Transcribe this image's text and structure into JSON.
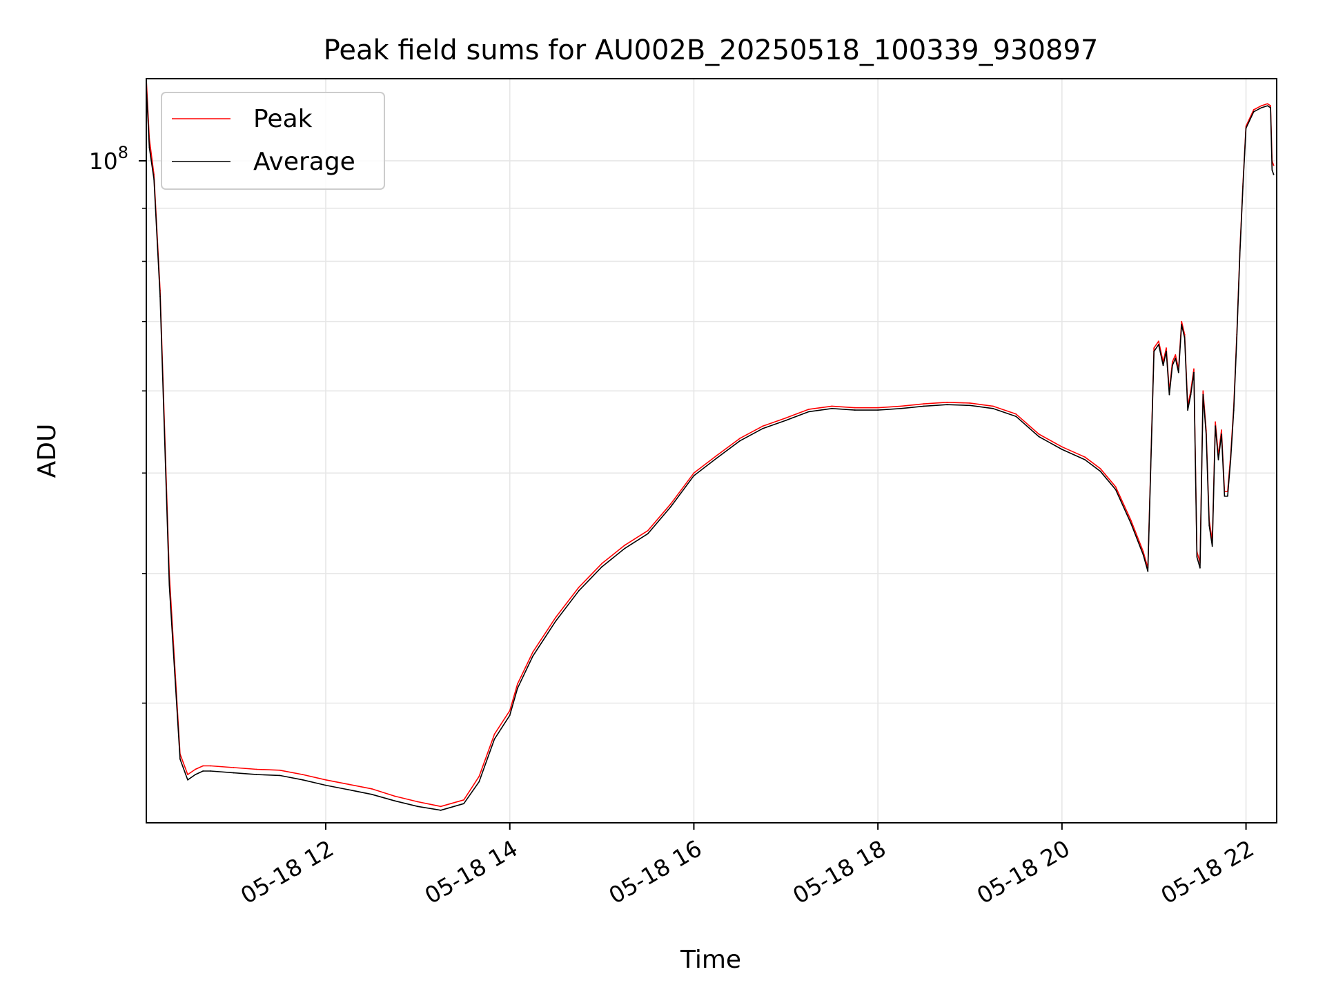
{
  "chart_data": {
    "type": "line",
    "title": "Peak field sums for AU002B_20250518_100339_930897",
    "xlabel": "Time",
    "ylabel": "ADU",
    "y_scale": "log",
    "grid": true,
    "legend_placement": "top-left",
    "xlim": [
      "2025-05-18 10:03",
      "2025-05-18 22:20"
    ],
    "ylim": [
      23000000,
      120000000
    ],
    "x_ticks": [
      {
        "value": "2025-05-18 12:00",
        "label": "05-18 12"
      },
      {
        "value": "2025-05-18 14:00",
        "label": "05-18 14"
      },
      {
        "value": "2025-05-18 16:00",
        "label": "05-18 16"
      },
      {
        "value": "2025-05-18 18:00",
        "label": "05-18 18"
      },
      {
        "value": "2025-05-18 20:00",
        "label": "05-18 20"
      },
      {
        "value": "2025-05-18 22:00",
        "label": "05-18 22"
      }
    ],
    "y_ticks": [
      {
        "value": 100000000,
        "base": "10",
        "exp": "8"
      }
    ],
    "colors": {
      "peak": "#ff0000",
      "average": "#000000"
    },
    "series": [
      {
        "name": "Peak",
        "x": [
          "2025-05-18 10:03",
          "2025-05-18 10:05",
          "2025-05-18 10:08",
          "2025-05-18 10:12",
          "2025-05-18 10:18",
          "2025-05-18 10:25",
          "2025-05-18 10:30",
          "2025-05-18 10:35",
          "2025-05-18 10:40",
          "2025-05-18 10:45",
          "2025-05-18 11:00",
          "2025-05-18 11:15",
          "2025-05-18 11:30",
          "2025-05-18 11:45",
          "2025-05-18 12:00",
          "2025-05-18 12:15",
          "2025-05-18 12:30",
          "2025-05-18 12:45",
          "2025-05-18 13:00",
          "2025-05-18 13:15",
          "2025-05-18 13:30",
          "2025-05-18 13:40",
          "2025-05-18 13:50",
          "2025-05-18 14:00",
          "2025-05-18 14:05",
          "2025-05-18 14:15",
          "2025-05-18 14:30",
          "2025-05-18 14:45",
          "2025-05-18 15:00",
          "2025-05-18 15:15",
          "2025-05-18 15:30",
          "2025-05-18 15:45",
          "2025-05-18 16:00",
          "2025-05-18 16:15",
          "2025-05-18 16:30",
          "2025-05-18 16:45",
          "2025-05-18 17:00",
          "2025-05-18 17:15",
          "2025-05-18 17:30",
          "2025-05-18 17:45",
          "2025-05-18 18:00",
          "2025-05-18 18:15",
          "2025-05-18 18:30",
          "2025-05-18 18:45",
          "2025-05-18 19:00",
          "2025-05-18 19:15",
          "2025-05-18 19:30",
          "2025-05-18 19:45",
          "2025-05-18 20:00",
          "2025-05-18 20:15",
          "2025-05-18 20:25",
          "2025-05-18 20:35",
          "2025-05-18 20:45",
          "2025-05-18 20:53",
          "2025-05-18 20:56",
          "2025-05-18 21:00",
          "2025-05-18 21:03",
          "2025-05-18 21:06",
          "2025-05-18 21:08",
          "2025-05-18 21:10",
          "2025-05-18 21:12",
          "2025-05-18 21:14",
          "2025-05-18 21:16",
          "2025-05-18 21:18",
          "2025-05-18 21:20",
          "2025-05-18 21:22",
          "2025-05-18 21:24",
          "2025-05-18 21:26",
          "2025-05-18 21:28",
          "2025-05-18 21:30",
          "2025-05-18 21:32",
          "2025-05-18 21:34",
          "2025-05-18 21:36",
          "2025-05-18 21:38",
          "2025-05-18 21:40",
          "2025-05-18 21:42",
          "2025-05-18 21:44",
          "2025-05-18 21:46",
          "2025-05-18 21:48",
          "2025-05-18 21:50",
          "2025-05-18 21:52",
          "2025-05-18 21:54",
          "2025-05-18 21:56",
          "2025-05-18 21:58",
          "2025-05-18 22:00",
          "2025-05-18 22:05",
          "2025-05-18 22:10",
          "2025-05-18 22:14",
          "2025-05-18 22:16",
          "2025-05-18 22:17",
          "2025-05-18 22:18"
        ],
        "values": [
          120000000,
          105000000,
          97000000,
          75000000,
          40000000,
          26800000,
          25600000,
          25900000,
          26100000,
          26100000,
          26000000,
          25900000,
          25850000,
          25600000,
          25300000,
          25050000,
          24800000,
          24400000,
          24100000,
          23850000,
          24200000,
          25500000,
          28000000,
          29500000,
          31300000,
          33600000,
          36300000,
          38800000,
          40900000,
          42600000,
          44000000,
          46700000,
          50000000,
          52000000,
          54000000,
          55500000,
          56500000,
          57600000,
          58000000,
          57800000,
          57800000,
          58000000,
          58300000,
          58500000,
          58400000,
          58000000,
          57000000,
          54500000,
          53000000,
          51800000,
          50500000,
          48500000,
          45000000,
          42000000,
          40500000,
          66000000,
          67000000,
          64000000,
          66000000,
          60000000,
          64000000,
          65000000,
          63000000,
          70000000,
          68000000,
          58000000,
          60000000,
          63000000,
          42000000,
          41000000,
          60000000,
          55000000,
          45000000,
          43000000,
          56000000,
          52000000,
          55000000,
          48000000,
          48000000,
          52000000,
          58000000,
          68000000,
          82000000,
          95000000,
          108000000,
          112000000,
          113000000,
          113500000,
          113000000,
          100000000,
          99000000
        ],
        "spike_note": ""
      },
      {
        "name": "Average",
        "x": [
          "2025-05-18 10:03",
          "2025-05-18 10:05",
          "2025-05-18 10:08",
          "2025-05-18 10:12",
          "2025-05-18 10:18",
          "2025-05-18 10:25",
          "2025-05-18 10:30",
          "2025-05-18 10:35",
          "2025-05-18 10:40",
          "2025-05-18 10:45",
          "2025-05-18 11:00",
          "2025-05-18 11:15",
          "2025-05-18 11:30",
          "2025-05-18 11:45",
          "2025-05-18 12:00",
          "2025-05-18 12:15",
          "2025-05-18 12:30",
          "2025-05-18 12:45",
          "2025-05-18 13:00",
          "2025-05-18 13:15",
          "2025-05-18 13:30",
          "2025-05-18 13:40",
          "2025-05-18 13:50",
          "2025-05-18 14:00",
          "2025-05-18 14:05",
          "2025-05-18 14:15",
          "2025-05-18 14:30",
          "2025-05-18 14:45",
          "2025-05-18 15:00",
          "2025-05-18 15:15",
          "2025-05-18 15:30",
          "2025-05-18 15:45",
          "2025-05-18 16:00",
          "2025-05-18 16:15",
          "2025-05-18 16:30",
          "2025-05-18 16:45",
          "2025-05-18 17:00",
          "2025-05-18 17:15",
          "2025-05-18 17:30",
          "2025-05-18 17:45",
          "2025-05-18 18:00",
          "2025-05-18 18:15",
          "2025-05-18 18:30",
          "2025-05-18 18:45",
          "2025-05-18 19:00",
          "2025-05-18 19:15",
          "2025-05-18 19:30",
          "2025-05-18 19:45",
          "2025-05-18 20:00",
          "2025-05-18 20:15",
          "2025-05-18 20:25",
          "2025-05-18 20:35",
          "2025-05-18 20:45",
          "2025-05-18 20:53",
          "2025-05-18 20:56",
          "2025-05-18 21:00",
          "2025-05-18 21:03",
          "2025-05-18 21:06",
          "2025-05-18 21:08",
          "2025-05-18 21:10",
          "2025-05-18 21:12",
          "2025-05-18 21:14",
          "2025-05-18 21:16",
          "2025-05-18 21:18",
          "2025-05-18 21:20",
          "2025-05-18 21:22",
          "2025-05-18 21:24",
          "2025-05-18 21:26",
          "2025-05-18 21:28",
          "2025-05-18 21:30",
          "2025-05-18 21:32",
          "2025-05-18 21:34",
          "2025-05-18 21:36",
          "2025-05-18 21:38",
          "2025-05-18 21:40",
          "2025-05-18 21:42",
          "2025-05-18 21:44",
          "2025-05-18 21:46",
          "2025-05-18 21:48",
          "2025-05-18 21:50",
          "2025-05-18 21:52",
          "2025-05-18 21:54",
          "2025-05-18 21:56",
          "2025-05-18 21:58",
          "2025-05-18 22:00",
          "2025-05-18 22:05",
          "2025-05-18 22:10",
          "2025-05-18 22:14",
          "2025-05-18 22:16",
          "2025-05-18 22:17",
          "2025-05-18 22:18"
        ],
        "values": [
          118000000,
          103000000,
          96000000,
          74000000,
          39000000,
          26500000,
          25300000,
          25600000,
          25800000,
          25800000,
          25700000,
          25600000,
          25550000,
          25300000,
          25000000,
          24750000,
          24500000,
          24150000,
          23850000,
          23650000,
          24000000,
          25200000,
          27700000,
          29200000,
          31000000,
          33300000,
          36000000,
          38500000,
          40600000,
          42300000,
          43700000,
          46400000,
          49700000,
          51700000,
          53700000,
          55200000,
          56200000,
          57300000,
          57700000,
          57500000,
          57500000,
          57700000,
          58000000,
          58200000,
          58100000,
          57700000,
          56700000,
          54200000,
          52700000,
          51500000,
          50200000,
          48200000,
          44700000,
          41700000,
          40200000,
          65500000,
          66500000,
          63500000,
          65500000,
          59500000,
          63500000,
          64500000,
          62500000,
          69500000,
          67500000,
          57500000,
          59500000,
          62500000,
          41500000,
          40500000,
          59500000,
          54500000,
          44500000,
          42500000,
          55500000,
          51500000,
          54500000,
          47500000,
          47500000,
          51500000,
          57500000,
          67500000,
          81500000,
          94500000,
          107500000,
          111500000,
          112500000,
          113000000,
          112500000,
          98000000,
          97000000
        ]
      }
    ]
  }
}
